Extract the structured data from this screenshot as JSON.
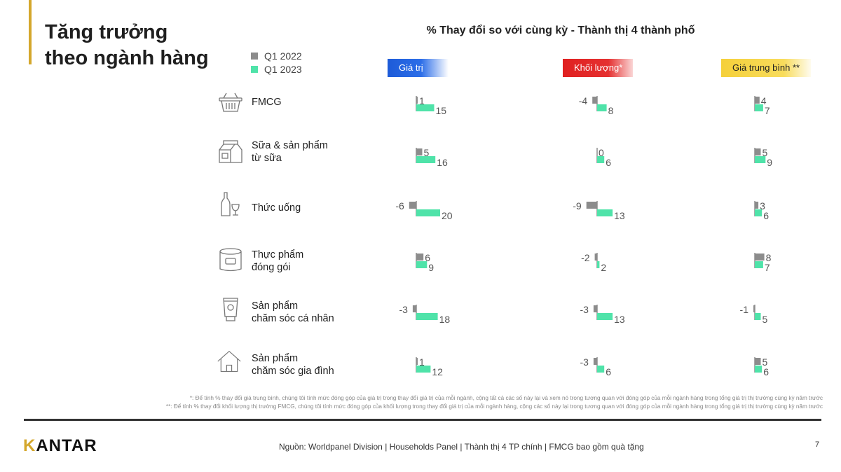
{
  "title_line1": "Tăng trưởng",
  "title_line2": "theo ngành hàng",
  "legend": [
    {
      "label": "Q1 2022",
      "color": "#8c8c8c"
    },
    {
      "label": "Q1 2023",
      "color": "#4fe3a9"
    }
  ],
  "chart_data": {
    "type": "bar",
    "title": "% Thay đổi so với cùng kỳ - Thành thị 4 thành phố",
    "columns": [
      "Giá trị",
      "Khối lượng*",
      "Giá trung bình **"
    ],
    "categories": [
      "FMCG",
      "Sữa & sản phẩm\ntừ sữa",
      "Thức uống",
      "Thực phẩm\nđóng gói",
      "Sản phẩm\nchăm sóc cá nhân",
      "Sản phẩm\nchăm sóc gia đình"
    ],
    "series": [
      {
        "name": "Q1 2022",
        "color": "#8c8c8c",
        "values": {
          "Giá trị": [
            1,
            5,
            -6,
            6,
            -3,
            1
          ],
          "Khối lượng*": [
            -4,
            0,
            -9,
            -2,
            -3,
            -3
          ],
          "Giá trung bình **": [
            4,
            5,
            3,
            8,
            -1,
            5
          ]
        }
      },
      {
        "name": "Q1 2023",
        "color": "#4fe3a9",
        "values": {
          "Giá trị": [
            15,
            16,
            20,
            9,
            18,
            12
          ],
          "Khối lượng*": [
            8,
            6,
            13,
            2,
            13,
            6
          ],
          "Giá trung bình **": [
            7,
            9,
            6,
            7,
            5,
            6
          ]
        }
      }
    ]
  },
  "category_icons": [
    "basket-icon",
    "milk-carton-icon",
    "wine-bottle-icon",
    "canned-food-icon",
    "cosmetic-tube-icon",
    "house-icon"
  ],
  "footnotes": [
    "*: Để tính % thay đổi giá trung bình, chúng tôi tính mức đóng góp của giá trị trong thay đổi giá trị của mỗi ngành, cộng tất cả các số này lại và xem nó trong tương quan với đóng góp của mỗi ngành hàng trong tổng giá trị thị trường cùng kỳ năm trước",
    "**: Để tính % thay đổi khối lượng thị trường FMCG, chúng tôi tính mức đóng góp của khối lượng trong thay đổi giá trị của mỗi ngành hàng, cộng các số này lại trong tương quan với đóng góp của mỗi ngành hàng trong tổng giá trị thị trường cùng kỳ năm trước"
  ],
  "logo": {
    "prefix": "K",
    "rest": "ANTAR"
  },
  "source": "Nguồn: Worldpanel Division | Households Panel | Thành thị 4 TP chính | FMCG bao gồm quà tặng",
  "page_number": "7"
}
